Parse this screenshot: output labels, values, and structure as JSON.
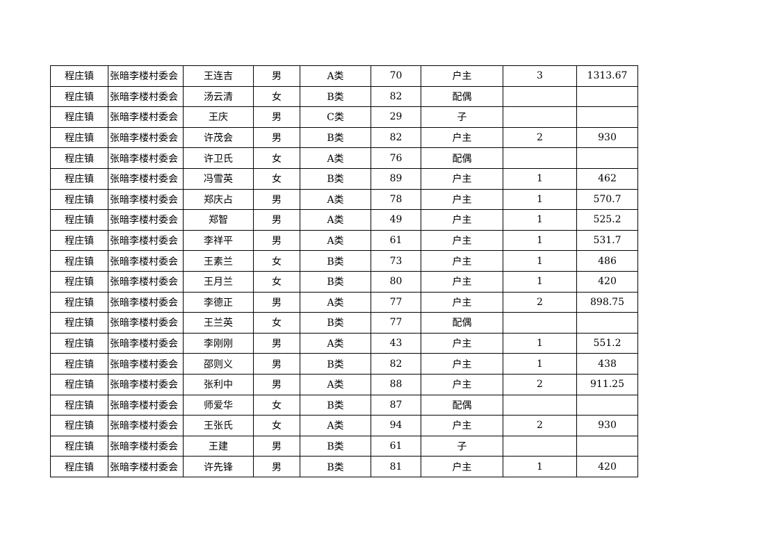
{
  "table": {
    "rows": [
      [
        "程庄镇",
        "张暗李楼村委会",
        "王连吉",
        "男",
        "A类",
        "70",
        "户主",
        "3",
        "1313.67"
      ],
      [
        "程庄镇",
        "张暗李楼村委会",
        "汤云清",
        "女",
        "B类",
        "82",
        "配偶",
        "",
        ""
      ],
      [
        "程庄镇",
        "张暗李楼村委会",
        "王庆",
        "男",
        "C类",
        "29",
        "子",
        "",
        ""
      ],
      [
        "程庄镇",
        "张暗李楼村委会",
        "许茂会",
        "男",
        "B类",
        "82",
        "户主",
        "2",
        "930"
      ],
      [
        "程庄镇",
        "张暗李楼村委会",
        "许卫氏",
        "女",
        "A类",
        "76",
        "配偶",
        "",
        ""
      ],
      [
        "程庄镇",
        "张暗李楼村委会",
        "冯雪英",
        "女",
        "B类",
        "89",
        "户主",
        "1",
        "462"
      ],
      [
        "程庄镇",
        "张暗李楼村委会",
        "郑庆占",
        "男",
        "A类",
        "78",
        "户主",
        "1",
        "570.7"
      ],
      [
        "程庄镇",
        "张暗李楼村委会",
        "郑智",
        "男",
        "A类",
        "49",
        "户主",
        "1",
        "525.2"
      ],
      [
        "程庄镇",
        "张暗李楼村委会",
        "李祥平",
        "男",
        "A类",
        "61",
        "户主",
        "1",
        "531.7"
      ],
      [
        "程庄镇",
        "张暗李楼村委会",
        "王素兰",
        "女",
        "B类",
        "73",
        "户主",
        "1",
        "486"
      ],
      [
        "程庄镇",
        "张暗李楼村委会",
        "王月兰",
        "女",
        "B类",
        "80",
        "户主",
        "1",
        "420"
      ],
      [
        "程庄镇",
        "张暗李楼村委会",
        "李德正",
        "男",
        "A类",
        "77",
        "户主",
        "2",
        "898.75"
      ],
      [
        "程庄镇",
        "张暗李楼村委会",
        "王兰英",
        "女",
        "B类",
        "77",
        "配偶",
        "",
        ""
      ],
      [
        "程庄镇",
        "张暗李楼村委会",
        "李刚刚",
        "男",
        "A类",
        "43",
        "户主",
        "1",
        "551.2"
      ],
      [
        "程庄镇",
        "张暗李楼村委会",
        "邵则义",
        "男",
        "B类",
        "82",
        "户主",
        "1",
        "438"
      ],
      [
        "程庄镇",
        "张暗李楼村委会",
        "张利中",
        "男",
        "A类",
        "88",
        "户主",
        "2",
        "911.25"
      ],
      [
        "程庄镇",
        "张暗李楼村委会",
        "师爱华",
        "女",
        "B类",
        "87",
        "配偶",
        "",
        ""
      ],
      [
        "程庄镇",
        "张暗李楼村委会",
        "王张氏",
        "女",
        "A类",
        "94",
        "户主",
        "2",
        "930"
      ],
      [
        "程庄镇",
        "张暗李楼村委会",
        "王建",
        "男",
        "B类",
        "61",
        "子",
        "",
        ""
      ],
      [
        "程庄镇",
        "张暗李楼村委会",
        "许先锋",
        "男",
        "B类",
        "81",
        "户主",
        "1",
        "420"
      ]
    ]
  }
}
